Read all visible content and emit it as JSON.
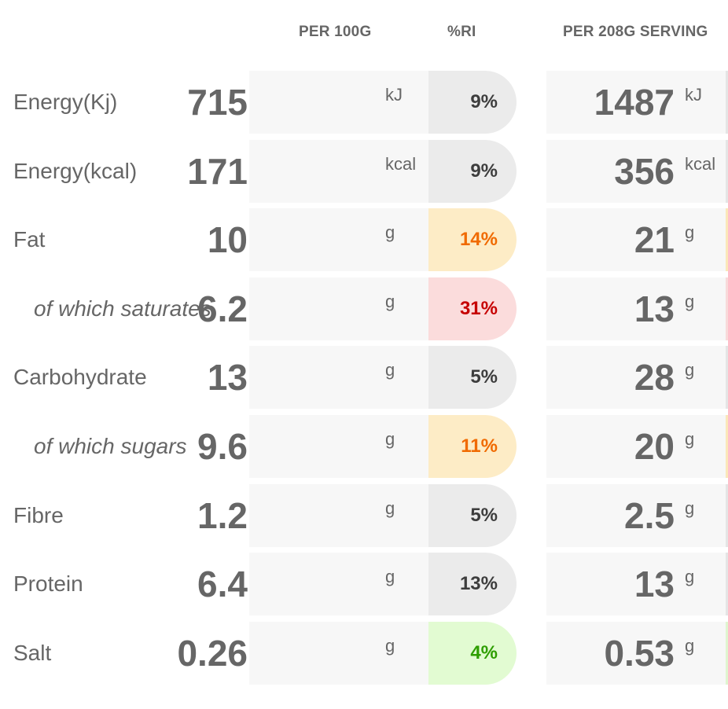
{
  "headers": {
    "per_100g": "PER 100G",
    "ri": "%RI",
    "per_serving": "PER 208G SERVING"
  },
  "rows": [
    {
      "label": "Energy(Kj)",
      "indent": false,
      "per100": "715",
      "unit": "kJ",
      "ri": "9%",
      "ri_level": "neutral",
      "serving": "1487"
    },
    {
      "label": "Energy(kcal)",
      "indent": false,
      "per100": "171",
      "unit": "kcal",
      "ri": "9%",
      "ri_level": "neutral",
      "serving": "356"
    },
    {
      "label": "Fat",
      "indent": false,
      "per100": "10",
      "unit": "g",
      "ri": "14%",
      "ri_level": "medium",
      "serving": "21"
    },
    {
      "label": "of which saturates",
      "indent": true,
      "per100": "6.2",
      "unit": "g",
      "ri": "31%",
      "ri_level": "high",
      "serving": "13"
    },
    {
      "label": "Carbohydrate",
      "indent": false,
      "per100": "13",
      "unit": "g",
      "ri": "5%",
      "ri_level": "neutral",
      "serving": "28"
    },
    {
      "label": "of which sugars",
      "indent": true,
      "per100": "9.6",
      "unit": "g",
      "ri": "11%",
      "ri_level": "medium",
      "serving": "20"
    },
    {
      "label": "Fibre",
      "indent": false,
      "per100": "1.2",
      "unit": "g",
      "ri": "5%",
      "ri_level": "neutral",
      "serving": "2.5"
    },
    {
      "label": "Protein",
      "indent": false,
      "per100": "6.4",
      "unit": "g",
      "ri": "13%",
      "ri_level": "neutral",
      "serving": "13"
    },
    {
      "label": "Salt",
      "indent": false,
      "per100": "0.26",
      "unit": "g",
      "ri": "4%",
      "ri_level": "low",
      "serving": "0.53"
    }
  ],
  "colors": {
    "neutral": "#ebebeb",
    "medium": "#fdecc6",
    "medium_text": "#f06a00",
    "high": "#fbdcdc",
    "high_text": "#c60000",
    "low": "#e2fbd2",
    "low_text": "#2e9e00"
  }
}
